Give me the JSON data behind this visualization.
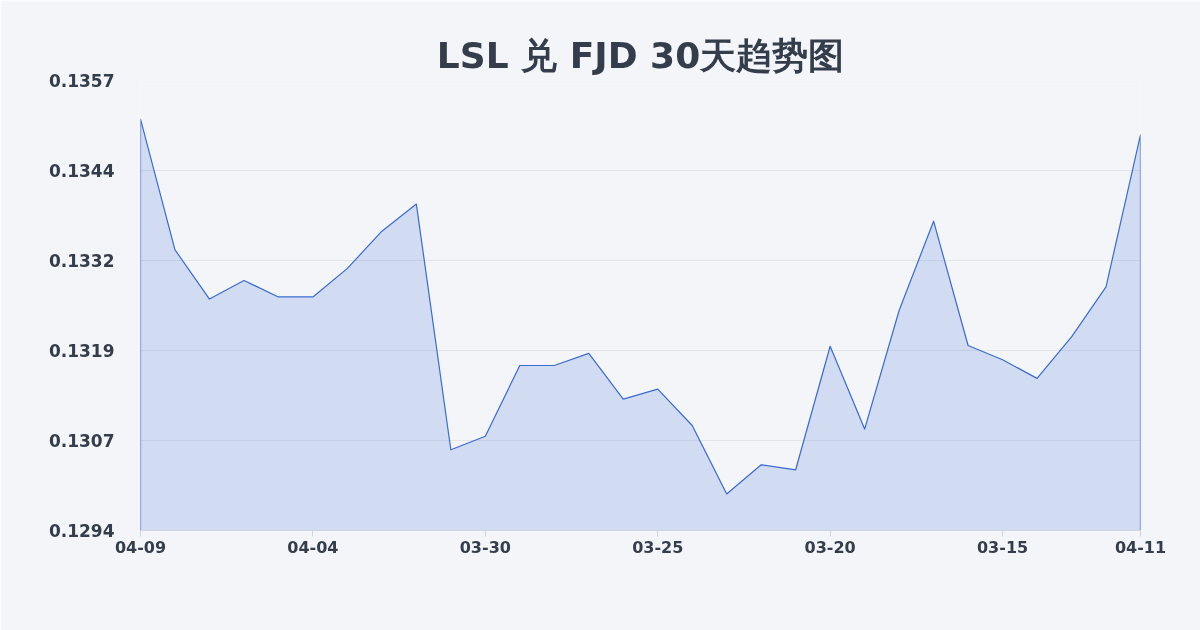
{
  "chart_data": {
    "type": "area",
    "title": "LSL 兑 FJD 30天趋势图",
    "categories": [
      "04-09",
      null,
      null,
      null,
      null,
      "04-04",
      null,
      null,
      null,
      null,
      "03-30",
      null,
      null,
      null,
      null,
      "03-25",
      null,
      null,
      null,
      null,
      "03-20",
      null,
      null,
      null,
      null,
      "03-15",
      null,
      null,
      null,
      "04-11"
    ],
    "series": [
      {
        "color": "#3a6bd0",
        "values": [
          0.13516,
          0.13333,
          0.13264,
          0.1329,
          0.13267,
          0.13267,
          0.13307,
          0.13359,
          0.13397,
          0.13053,
          0.13072,
          0.13171,
          0.13171,
          0.13188,
          0.13124,
          0.13138,
          0.13087,
          0.12991,
          0.13032,
          0.13025,
          0.13198,
          0.13082,
          0.13248,
          0.13373,
          0.13199,
          0.13179,
          0.13153,
          0.13211,
          0.13281,
          0.13494
        ]
      }
    ],
    "ylim": [
      0.1294,
      0.1357
    ],
    "yticks": [
      0.1294,
      {
        "value": 0.13066,
        "label": "0.1307"
      },
      {
        "value": 0.13192,
        "label": "0.1319"
      },
      {
        "value": 0.13318,
        "label": "0.1332"
      },
      {
        "value": 0.13444,
        "label": "0.1344"
      },
      0.1357
    ],
    "grid": "y"
  }
}
